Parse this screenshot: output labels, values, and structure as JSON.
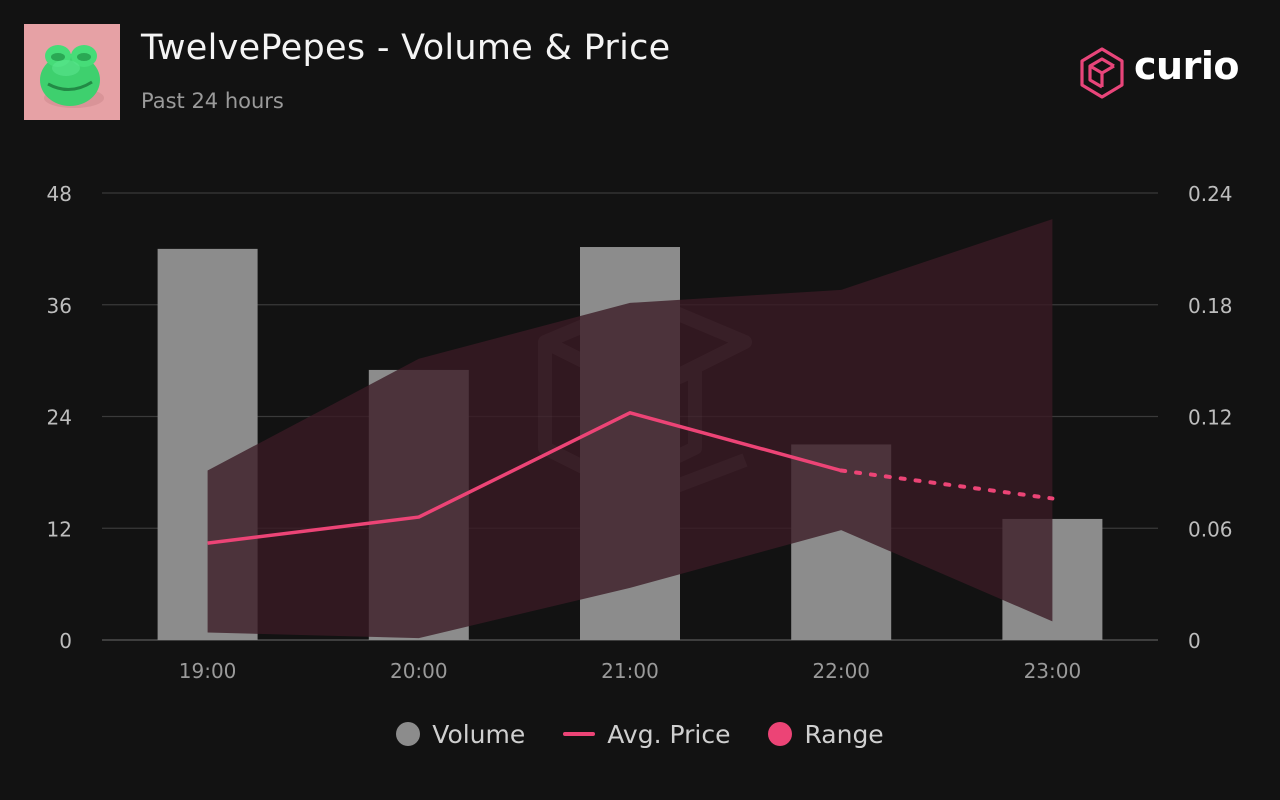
{
  "header": {
    "title": "TwelvePepes - Volume & Price",
    "subtitle": "Past 24 hours",
    "thumbnail_icon": "pepe-frog-icon"
  },
  "brand": {
    "name": "curio",
    "icon": "curio-logo-icon",
    "color": "#e8457a"
  },
  "legend": {
    "volume": "Volume",
    "avg_price": "Avg. Price",
    "range": "Range"
  },
  "colors": {
    "background": "#121212",
    "bar": "#8c8c8c",
    "line": "#ec4476",
    "range_fill": "#3a1a24",
    "grid": "#3a3a3a",
    "axis_text": "#bdbdbd"
  },
  "chart_data": {
    "type": "bar",
    "categories": [
      "19:00",
      "20:00",
      "21:00",
      "22:00",
      "23:00"
    ],
    "left_axis": {
      "ylim": [
        0,
        48
      ],
      "ticks": [
        "0",
        "12",
        "24",
        "36",
        "48"
      ]
    },
    "right_axis": {
      "ylim": [
        0,
        0.24
      ],
      "ticks": [
        "0",
        "0.06",
        "0.12",
        "0.18",
        "0.24"
      ]
    },
    "series": [
      {
        "name": "Volume",
        "type": "bar",
        "axis": "left",
        "values": [
          42,
          29,
          42.2,
          21,
          13
        ]
      },
      {
        "name": "Avg. Price",
        "type": "line",
        "axis": "right",
        "values": [
          0.052,
          0.066,
          0.122,
          0.091,
          0.076
        ],
        "dashed_from_index": 3
      },
      {
        "name": "Range",
        "type": "area",
        "axis": "right",
        "high": [
          0.091,
          0.151,
          0.181,
          0.188,
          0.226
        ],
        "low": [
          0.004,
          0.001,
          0.028,
          0.059,
          0.01
        ]
      }
    ]
  }
}
